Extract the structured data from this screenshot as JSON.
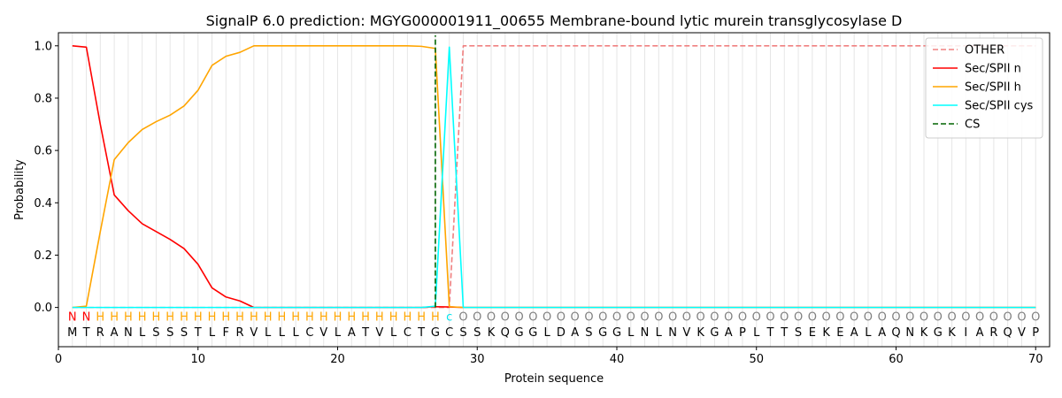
{
  "chart_data": {
    "type": "line",
    "title": "SignalP 6.0 prediction: MGYG000001911_00655 Membrane-bound lytic murein transglycosylase D",
    "xlabel": "Protein sequence",
    "ylabel": "Probability",
    "xlim": [
      0,
      71
    ],
    "ylim": [
      -0.15,
      1.05
    ],
    "xticks": [
      0,
      10,
      20,
      30,
      40,
      50,
      60,
      70
    ],
    "yticks": [
      0.0,
      0.2,
      0.4,
      0.6,
      0.8,
      1.0
    ],
    "xtick_labels": [
      "0",
      "10",
      "20",
      "30",
      "40",
      "50",
      "60",
      "70"
    ],
    "ytick_labels": [
      "0.0",
      "0.2",
      "0.4",
      "0.6",
      "0.8",
      "1.0"
    ],
    "grid": "vertical lines at each residue",
    "legend_position": "top-right",
    "sequence": [
      "M",
      "T",
      "R",
      "A",
      "N",
      "L",
      "S",
      "S",
      "S",
      "T",
      "L",
      "F",
      "R",
      "V",
      "L",
      "L",
      "L",
      "C",
      "V",
      "L",
      "A",
      "T",
      "V",
      "L",
      "C",
      "T",
      "G",
      "C",
      "S",
      "S",
      "K",
      "Q",
      "G",
      "G",
      "L",
      "D",
      "A",
      "S",
      "G",
      "G",
      "L",
      "N",
      "L",
      "N",
      "V",
      "K",
      "G",
      "A",
      "P",
      "L",
      "T",
      "T",
      "S",
      "E",
      "K",
      "E",
      "A",
      "L",
      "A",
      "Q",
      "N",
      "K",
      "G",
      "K",
      "I",
      "A",
      "R",
      "Q",
      "V",
      "P"
    ],
    "annotation": [
      "N",
      "N",
      "H",
      "H",
      "H",
      "H",
      "H",
      "H",
      "H",
      "H",
      "H",
      "H",
      "H",
      "H",
      "H",
      "H",
      "H",
      "H",
      "H",
      "H",
      "H",
      "H",
      "H",
      "H",
      "H",
      "H",
      "H",
      "c",
      "O",
      "O",
      "O",
      "O",
      "O",
      "O",
      "O",
      "O",
      "O",
      "O",
      "O",
      "O",
      "O",
      "O",
      "O",
      "O",
      "O",
      "O",
      "O",
      "O",
      "O",
      "O",
      "O",
      "O",
      "O",
      "O",
      "O",
      "O",
      "O",
      "O",
      "O",
      "O",
      "O",
      "O",
      "O",
      "O",
      "O",
      "O",
      "O",
      "O",
      "O",
      "O"
    ],
    "annotation_colors": {
      "N": "#ff0000",
      "H": "#ffa500",
      "c": "#00e5ee",
      "O": "#808080"
    },
    "series": [
      {
        "name": "OTHER",
        "color": "#f08080",
        "dash": "dashed",
        "x": [
          1,
          2,
          3,
          4,
          5,
          6,
          7,
          8,
          9,
          10,
          11,
          12,
          13,
          14,
          15,
          16,
          17,
          18,
          19,
          20,
          21,
          22,
          23,
          24,
          25,
          26,
          27,
          28,
          29,
          30,
          31,
          32,
          33,
          34,
          35,
          36,
          37,
          38,
          39,
          40,
          41,
          42,
          43,
          44,
          45,
          46,
          47,
          48,
          49,
          50,
          51,
          52,
          53,
          54,
          55,
          56,
          57,
          58,
          59,
          60,
          61,
          62,
          63,
          64,
          65,
          66,
          67,
          68,
          69,
          70
        ],
        "y": [
          0,
          0,
          0,
          0,
          0,
          0,
          0,
          0,
          0,
          0,
          0,
          0,
          0,
          0,
          0,
          0,
          0,
          0,
          0,
          0,
          0,
          0,
          0,
          0,
          0,
          0,
          0,
          0,
          1.0,
          1.0,
          1.0,
          1.0,
          1.0,
          1.0,
          1.0,
          1.0,
          1.0,
          1.0,
          1.0,
          1.0,
          1.0,
          1.0,
          1.0,
          1.0,
          1.0,
          1.0,
          1.0,
          1.0,
          1.0,
          1.0,
          1.0,
          1.0,
          1.0,
          1.0,
          1.0,
          1.0,
          1.0,
          1.0,
          1.0,
          1.0,
          1.0,
          1.0,
          1.0,
          1.0,
          1.0,
          1.0,
          1.0,
          1.0,
          1.0,
          1.0
        ]
      },
      {
        "name": "Sec/SPII n",
        "color": "#ff0000",
        "dash": "solid",
        "x": [
          1,
          2,
          3,
          4,
          5,
          6,
          7,
          8,
          9,
          10,
          11,
          12,
          13,
          14,
          15,
          16,
          17,
          18,
          19,
          20,
          21,
          22,
          23,
          24,
          25,
          26,
          27,
          28,
          29,
          30,
          31,
          32,
          33,
          34,
          35,
          36,
          37,
          38,
          39,
          40,
          41,
          42,
          43,
          44,
          45,
          46,
          47,
          48,
          49,
          50,
          51,
          52,
          53,
          54,
          55,
          56,
          57,
          58,
          59,
          60,
          61,
          62,
          63,
          64,
          65,
          66,
          67,
          68,
          69,
          70
        ],
        "y": [
          1.0,
          0.995,
          0.7,
          0.43,
          0.37,
          0.32,
          0.29,
          0.26,
          0.225,
          0.165,
          0.075,
          0.04,
          0.025,
          0,
          0,
          0,
          0,
          0,
          0,
          0,
          0,
          0,
          0,
          0,
          0,
          0,
          0.003,
          0.002,
          0,
          0,
          0,
          0,
          0,
          0,
          0,
          0,
          0,
          0,
          0,
          0,
          0,
          0,
          0,
          0,
          0,
          0,
          0,
          0,
          0,
          0,
          0,
          0,
          0,
          0,
          0,
          0,
          0,
          0,
          0,
          0,
          0,
          0,
          0,
          0,
          0,
          0,
          0,
          0,
          0,
          0
        ]
      },
      {
        "name": "Sec/SPII h",
        "color": "#ffa500",
        "dash": "solid",
        "x": [
          1,
          2,
          3,
          4,
          5,
          6,
          7,
          8,
          9,
          10,
          11,
          12,
          13,
          14,
          15,
          16,
          17,
          18,
          19,
          20,
          21,
          22,
          23,
          24,
          25,
          26,
          27,
          28,
          29,
          30,
          31,
          32,
          33,
          34,
          35,
          36,
          37,
          38,
          39,
          40,
          41,
          42,
          43,
          44,
          45,
          46,
          47,
          48,
          49,
          50,
          51,
          52,
          53,
          54,
          55,
          56,
          57,
          58,
          59,
          60,
          61,
          62,
          63,
          64,
          65,
          66,
          67,
          68,
          69,
          70
        ],
        "y": [
          0,
          0.005,
          0.29,
          0.565,
          0.63,
          0.68,
          0.71,
          0.735,
          0.77,
          0.83,
          0.925,
          0.96,
          0.975,
          1.0,
          1.0,
          1.0,
          1.0,
          1.0,
          1.0,
          1.0,
          1.0,
          1.0,
          1.0,
          1.0,
          1.0,
          0.998,
          0.99,
          0.003,
          0,
          0,
          0,
          0,
          0,
          0,
          0,
          0,
          0,
          0,
          0,
          0,
          0,
          0,
          0,
          0,
          0,
          0,
          0,
          0,
          0,
          0,
          0,
          0,
          0,
          0,
          0,
          0,
          0,
          0,
          0,
          0,
          0,
          0,
          0,
          0,
          0,
          0,
          0,
          0,
          0,
          0
        ]
      },
      {
        "name": "Sec/SPII cys",
        "color": "#00ffff",
        "dash": "solid",
        "x": [
          1,
          2,
          3,
          4,
          5,
          6,
          7,
          8,
          9,
          10,
          11,
          12,
          13,
          14,
          15,
          16,
          17,
          18,
          19,
          20,
          21,
          22,
          23,
          24,
          25,
          26,
          27,
          28,
          29,
          30,
          31,
          32,
          33,
          34,
          35,
          36,
          37,
          38,
          39,
          40,
          41,
          42,
          43,
          44,
          45,
          46,
          47,
          48,
          49,
          50,
          51,
          52,
          53,
          54,
          55,
          56,
          57,
          58,
          59,
          60,
          61,
          62,
          63,
          64,
          65,
          66,
          67,
          68,
          69,
          70
        ],
        "y": [
          0,
          0,
          0,
          0,
          0,
          0,
          0,
          0,
          0,
          0,
          0,
          0,
          0,
          0,
          0,
          0,
          0,
          0,
          0,
          0,
          0,
          0,
          0,
          0,
          0,
          0,
          0.005,
          0.995,
          0,
          0,
          0,
          0,
          0,
          0,
          0,
          0,
          0,
          0,
          0,
          0,
          0,
          0,
          0,
          0,
          0,
          0,
          0,
          0,
          0,
          0,
          0,
          0,
          0,
          0,
          0,
          0,
          0,
          0,
          0,
          0,
          0,
          0,
          0,
          0,
          0,
          0,
          0,
          0,
          0,
          0
        ]
      },
      {
        "name": "CS",
        "color": "#006400",
        "dash": "dashed",
        "x": [
          27,
          27
        ],
        "y": [
          -0.0,
          1.04
        ]
      }
    ]
  }
}
